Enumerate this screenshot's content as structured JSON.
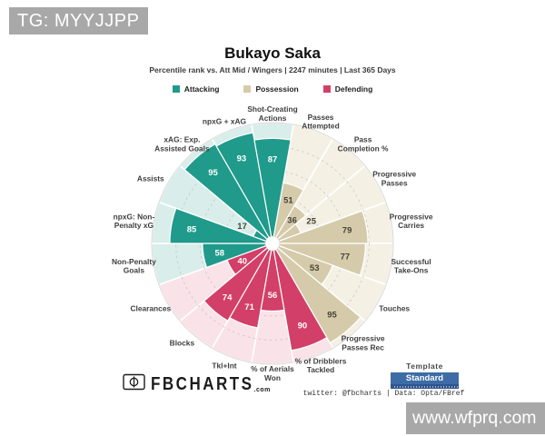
{
  "overlay": {
    "tg_badge": "TG: MYYJJPP",
    "watermark": "www.wfprq.com"
  },
  "header": {
    "title": "Bukayo Saka",
    "subtitle": "Percentile rank vs. Att Mid / Wingers | 2247 minutes | Last 365 Days"
  },
  "legend_order": [
    "attacking",
    "possession",
    "defending"
  ],
  "chart_data": {
    "type": "polar_bar_pizza",
    "title": "Bukayo Saka",
    "value_unit": "percentile",
    "rlim": [
      0,
      100
    ],
    "ring_ticks": [
      20,
      40,
      60,
      80
    ],
    "start_angle_deg": 0,
    "direction": "clockwise",
    "groups": {
      "attacking": {
        "label": "Attacking",
        "color": "#1f9a8b",
        "bg": "#d9edea"
      },
      "possession": {
        "label": "Possession",
        "color": "#d5cbaa",
        "bg": "#f4f1e4"
      },
      "defending": {
        "label": "Defending",
        "color": "#d23f68",
        "bg": "#f9e2e8"
      }
    },
    "slices": [
      {
        "label": "Shot-Creating\nActions",
        "value": 87,
        "group": "attacking"
      },
      {
        "label": "Passes\nAttempted",
        "value": 51,
        "group": "possession"
      },
      {
        "label": "Pass\nCompletion %",
        "value": 36,
        "group": "possession"
      },
      {
        "label": "Progressive\nPasses",
        "value": 25,
        "group": "possession"
      },
      {
        "label": "Progressive\nCarries",
        "value": 79,
        "group": "possession"
      },
      {
        "label": "Successful\nTake-Ons",
        "value": 77,
        "group": "possession"
      },
      {
        "label": "Touches",
        "value": 53,
        "group": "possession"
      },
      {
        "label": "Progressive\nPasses Rec",
        "value": 95,
        "group": "possession"
      },
      {
        "label": "% of Dribblers\nTackled",
        "value": 90,
        "group": "defending"
      },
      {
        "label": "% of Aerials\nWon",
        "value": 56,
        "group": "defending"
      },
      {
        "label": "Tkl+Int",
        "value": 71,
        "group": "defending"
      },
      {
        "label": "Blocks",
        "value": 74,
        "group": "defending"
      },
      {
        "label": "Clearances",
        "value": 40,
        "group": "defending"
      },
      {
        "label": "Non-Penalty\nGoals",
        "value": 58,
        "group": "attacking"
      },
      {
        "label": "npxG: Non-\nPenalty xG",
        "value": 85,
        "group": "attacking"
      },
      {
        "label": "Assists",
        "value": 17,
        "group": "attacking"
      },
      {
        "label": "xAG: Exp.\nAssisted Goals",
        "value": 95,
        "group": "attacking"
      },
      {
        "label": "npxG + xAG",
        "value": 93,
        "group": "attacking"
      }
    ]
  },
  "footer": {
    "brand_icon": "fbcharts-logo-icon",
    "brand": "FBCHARTS",
    "brand_suffix": ".com",
    "credits": "twitter: @fbcharts | Data: Opta/FBref",
    "template_label": "Template",
    "template_value": "Standard"
  }
}
